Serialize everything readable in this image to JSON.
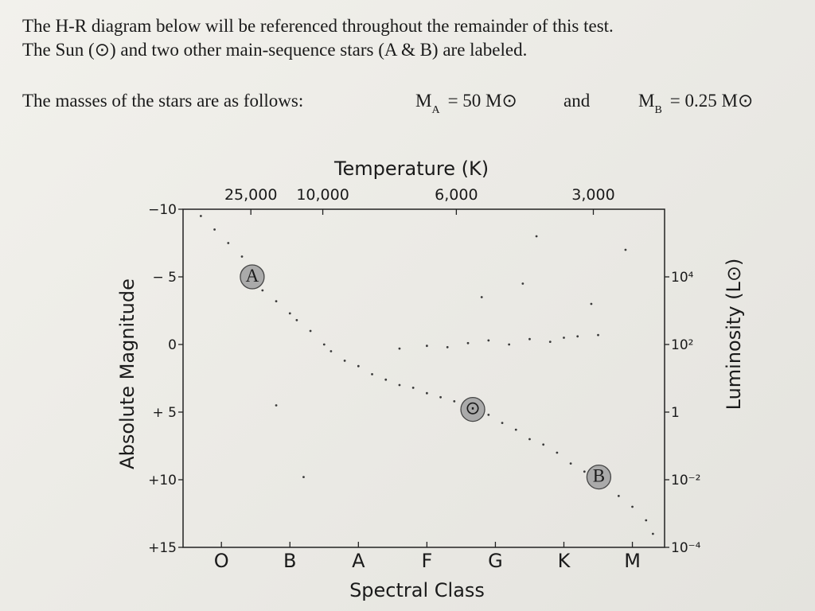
{
  "header": {
    "lines": [
      "The H-R diagram below will be referenced throughout the remainder of this test.",
      "The Sun (⊙) and two other main-sequence stars (A & B) are labeled."
    ],
    "masses_intro": "The masses of the stars are as follows:",
    "mass_a": {
      "symbol": "M",
      "subscript": "A",
      "rest": "= 50 M⊙"
    },
    "conjunction": "and",
    "mass_b": {
      "symbol": "M",
      "subscript": "B",
      "rest": "= 0.25 M⊙"
    }
  },
  "chart_data": {
    "type": "scatter",
    "x_label": "Spectral Class",
    "x2_label": "Temperature (K)",
    "y_label": "Absolute Magnitude",
    "y2_label": "Luminosity (L⊙)",
    "xlim": [
      -0.56,
      6.47
    ],
    "xticks": [
      {
        "value": 0,
        "label": "O"
      },
      {
        "value": 1,
        "label": "B"
      },
      {
        "value": 2,
        "label": "A"
      },
      {
        "value": 3,
        "label": "F"
      },
      {
        "value": 4,
        "label": "G"
      },
      {
        "value": 5,
        "label": "K"
      },
      {
        "value": 6,
        "label": "M"
      }
    ],
    "x2ticks": [
      {
        "value": 0.43,
        "label": "25,000"
      },
      {
        "value": 1.48,
        "label": "10,000"
      },
      {
        "value": 3.43,
        "label": "6,000"
      },
      {
        "value": 5.43,
        "label": "3,000"
      }
    ],
    "ylim": [
      -10,
      15
    ],
    "yticks": [
      {
        "value": -10,
        "label": "−10"
      },
      {
        "value": -5,
        "label": "− 5"
      },
      0,
      {
        "value": 5,
        "label": "+ 5"
      },
      {
        "value": 10,
        "label": "+10"
      },
      {
        "value": 15,
        "label": "+15"
      }
    ],
    "y2scale": "log",
    "y2lim": [
      1000000,
      0.0001
    ],
    "y2ticks": [
      {
        "value": 10000,
        "label": "10⁴"
      },
      {
        "value": 100,
        "label": "10²"
      },
      1,
      {
        "value": 0.01,
        "label": "10⁻²"
      },
      {
        "value": 0.0001,
        "label": "10⁻⁴"
      }
    ],
    "series": [
      {
        "color": "#3a3a3a",
        "x": [
          -0.3,
          -0.1,
          0.1,
          0.3,
          0.6,
          0.8,
          1.0,
          1.1,
          1.3,
          1.5,
          1.6,
          1.8,
          2.0,
          2.2,
          2.4,
          2.6,
          2.8,
          3.0,
          3.2,
          3.4,
          3.6,
          3.9,
          4.1,
          4.3,
          4.5,
          4.7,
          4.9,
          5.1,
          5.3,
          5.6,
          5.8,
          6.0,
          6.2,
          6.3,
          2.6,
          3.0,
          3.3,
          3.6,
          3.9,
          4.2,
          4.5,
          4.8,
          5.0,
          5.2,
          5.5,
          3.8,
          4.4,
          5.9,
          1.2,
          0.8,
          4.6,
          5.4
        ],
        "values": [
          -9.5,
          -8.5,
          -7.5,
          -6.5,
          -4.0,
          -3.2,
          -2.3,
          -1.8,
          -1.0,
          0.0,
          0.5,
          1.2,
          1.6,
          2.2,
          2.6,
          3.0,
          3.2,
          3.6,
          3.9,
          4.2,
          4.4,
          5.2,
          5.8,
          6.3,
          7.0,
          7.4,
          8.0,
          8.8,
          9.4,
          10.3,
          11.2,
          12.0,
          13.0,
          14.0,
          0.3,
          0.1,
          0.2,
          -0.1,
          -0.3,
          0.0,
          -0.4,
          -0.2,
          -0.5,
          -0.6,
          -0.7,
          -3.5,
          -4.5,
          -7.0,
          9.8,
          4.5,
          -8.0,
          -3.0
        ]
      },
      {
        "color": "#aaaaaa",
        "labels": [
          "A",
          "⊙",
          "B"
        ],
        "x": [
          0.45,
          3.67,
          5.51
        ],
        "values": [
          -5,
          4.8,
          9.8
        ]
      }
    ]
  }
}
